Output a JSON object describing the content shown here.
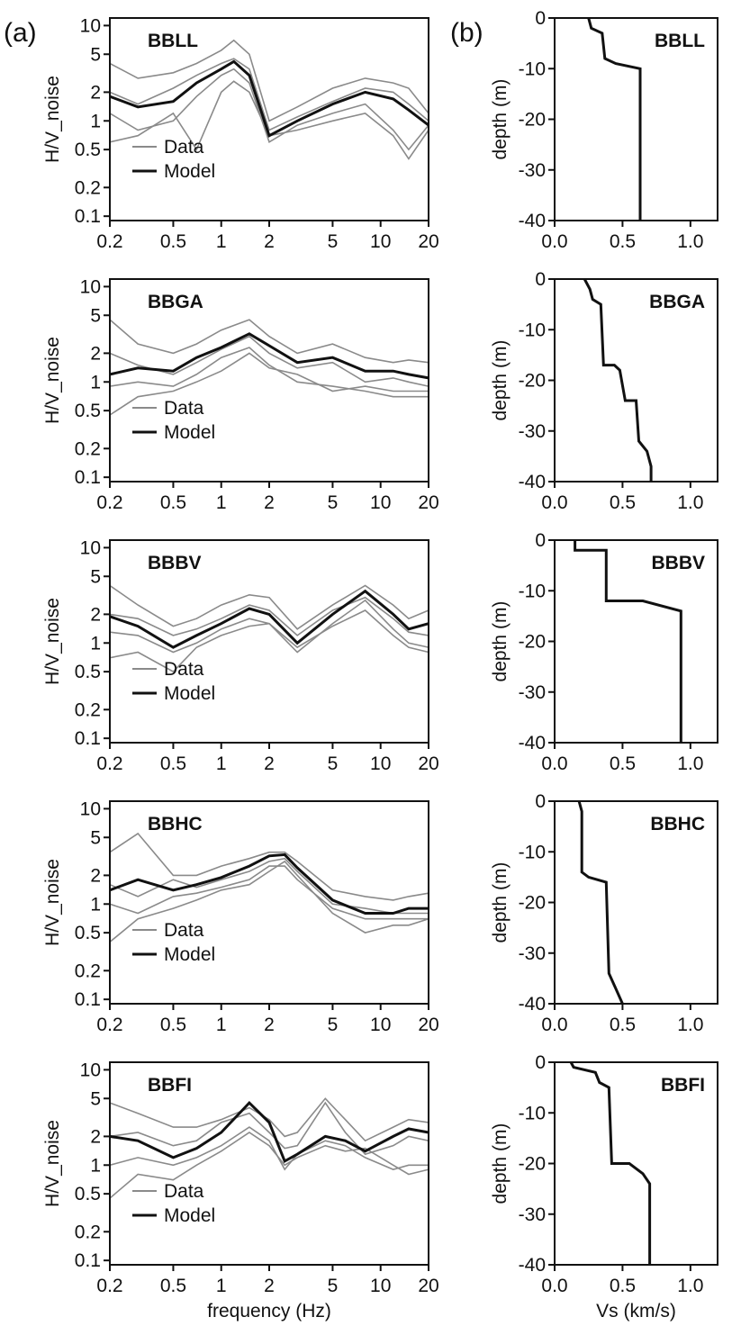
{
  "figure": {
    "panel_a_label": "(a)",
    "panel_b_label": "(b)",
    "legend_data_label": "Data",
    "legend_model_label": "Model",
    "colors": {
      "data": "#8a8a8a",
      "model": "#111111",
      "axis": "#111111"
    }
  },
  "chart_data": [
    {
      "type": "line",
      "panel": "a",
      "station": "BBLL",
      "xlabel": "",
      "ylabel": "H/V_noise",
      "xscale": "log",
      "yscale": "log",
      "xlim": [
        0.2,
        20
      ],
      "ylim": [
        0.09,
        12
      ],
      "xticks": [
        "0.2",
        "0.5",
        "1",
        "2",
        "5",
        "10",
        "20"
      ],
      "yticks": [
        "0.1",
        "0.2",
        "0.5",
        "1",
        "2",
        "5",
        "10"
      ],
      "legend": {
        "entries": [
          "Data",
          "Model"
        ],
        "position": "bottom-left"
      },
      "x": [
        0.2,
        0.3,
        0.5,
        0.7,
        1.0,
        1.2,
        1.5,
        2.0,
        3.0,
        5.0,
        8.0,
        12.0,
        15.0,
        20.0
      ],
      "model": [
        1.8,
        1.4,
        1.6,
        2.5,
        3.5,
        4.2,
        3.0,
        0.7,
        1.0,
        1.5,
        2.0,
        1.7,
        1.3,
        0.9
      ],
      "data": [
        [
          4.0,
          2.8,
          3.2,
          4.0,
          5.5,
          7.0,
          5.0,
          1.0,
          1.4,
          2.2,
          2.8,
          2.5,
          2.2,
          1.2
        ],
        [
          2.0,
          1.5,
          2.2,
          3.0,
          4.0,
          4.5,
          3.5,
          0.8,
          1.1,
          1.6,
          2.2,
          2.0,
          1.5,
          1.0
        ],
        [
          1.2,
          0.8,
          1.0,
          1.8,
          3.0,
          3.5,
          2.5,
          0.6,
          0.9,
          1.2,
          1.5,
          0.8,
          0.5,
          0.9
        ],
        [
          0.6,
          0.7,
          1.2,
          0.5,
          2.0,
          2.6,
          2.0,
          0.7,
          0.8,
          1.0,
          1.2,
          0.7,
          0.4,
          0.8
        ]
      ]
    },
    {
      "type": "line",
      "panel": "b",
      "station": "BBLL",
      "xlabel": "",
      "ylabel": "depth (m)",
      "xlim": [
        0.0,
        1.2
      ],
      "ylim": [
        -40,
        0
      ],
      "xticks": [
        "0.0",
        "0.5",
        "1.0"
      ],
      "yticks": [
        "0",
        "-10",
        "-20",
        "-30",
        "-40"
      ],
      "profile": [
        [
          0.25,
          0
        ],
        [
          0.27,
          -2
        ],
        [
          0.35,
          -3
        ],
        [
          0.37,
          -8
        ],
        [
          0.45,
          -9
        ],
        [
          0.63,
          -10
        ],
        [
          0.63,
          -40
        ]
      ]
    },
    {
      "type": "line",
      "panel": "a",
      "station": "BBGA",
      "xlabel": "",
      "ylabel": "H/V_noise",
      "xscale": "log",
      "yscale": "log",
      "xlim": [
        0.2,
        20
      ],
      "ylim": [
        0.09,
        12
      ],
      "xticks": [
        "0.2",
        "0.5",
        "1",
        "2",
        "5",
        "10",
        "20"
      ],
      "yticks": [
        "0.1",
        "0.2",
        "0.5",
        "1",
        "2",
        "5",
        "10"
      ],
      "legend": {
        "entries": [
          "Data",
          "Model"
        ],
        "position": "bottom-left"
      },
      "x": [
        0.2,
        0.3,
        0.5,
        0.7,
        1.0,
        1.5,
        2.0,
        3.0,
        5.0,
        8.0,
        12.0,
        15.0,
        20.0
      ],
      "model": [
        1.2,
        1.4,
        1.3,
        1.8,
        2.3,
        3.2,
        2.4,
        1.6,
        1.8,
        1.3,
        1.3,
        1.2,
        1.1
      ],
      "data": [
        [
          4.5,
          2.5,
          2.0,
          2.5,
          3.5,
          4.5,
          3.0,
          2.0,
          2.5,
          1.8,
          1.6,
          1.7,
          1.6
        ],
        [
          2.0,
          1.5,
          1.2,
          1.6,
          2.2,
          3.0,
          2.0,
          1.4,
          1.6,
          1.0,
          1.1,
          1.0,
          0.9
        ],
        [
          0.9,
          1.0,
          0.9,
          1.2,
          1.8,
          2.3,
          1.5,
          1.0,
          0.9,
          0.8,
          0.7,
          0.7,
          0.7
        ],
        [
          0.45,
          0.7,
          0.8,
          1.0,
          1.3,
          2.0,
          1.4,
          1.2,
          0.8,
          0.9,
          0.8,
          0.8,
          0.8
        ]
      ]
    },
    {
      "type": "line",
      "panel": "b",
      "station": "BBGA",
      "xlabel": "",
      "ylabel": "depth (m)",
      "xlim": [
        0.0,
        1.2
      ],
      "ylim": [
        -40,
        0
      ],
      "xticks": [
        "0.0",
        "0.5",
        "1.0"
      ],
      "yticks": [
        "0",
        "-10",
        "-20",
        "-30",
        "-40"
      ],
      "profile": [
        [
          0.22,
          0
        ],
        [
          0.26,
          -2
        ],
        [
          0.28,
          -4
        ],
        [
          0.34,
          -5
        ],
        [
          0.36,
          -17
        ],
        [
          0.44,
          -17
        ],
        [
          0.48,
          -18
        ],
        [
          0.52,
          -24
        ],
        [
          0.6,
          -24
        ],
        [
          0.62,
          -32
        ],
        [
          0.68,
          -34
        ],
        [
          0.71,
          -37
        ],
        [
          0.71,
          -40
        ]
      ]
    },
    {
      "type": "line",
      "panel": "a",
      "station": "BBBV",
      "xlabel": "",
      "ylabel": "H/V_noise",
      "xscale": "log",
      "yscale": "log",
      "xlim": [
        0.2,
        20
      ],
      "ylim": [
        0.09,
        12
      ],
      "xticks": [
        "0.2",
        "0.5",
        "1",
        "2",
        "5",
        "10",
        "20"
      ],
      "yticks": [
        "0.1",
        "0.2",
        "0.5",
        "1",
        "2",
        "5",
        "10"
      ],
      "legend": {
        "entries": [
          "Data",
          "Model"
        ],
        "position": "bottom-left"
      },
      "x": [
        0.2,
        0.3,
        0.5,
        0.7,
        1.0,
        1.5,
        2.0,
        3.0,
        5.0,
        8.0,
        12.0,
        15.0,
        20.0
      ],
      "model": [
        1.9,
        1.5,
        0.9,
        1.2,
        1.6,
        2.3,
        2.0,
        1.0,
        2.0,
        3.5,
        2.0,
        1.4,
        1.6
      ],
      "data": [
        [
          4.0,
          2.5,
          1.5,
          1.8,
          2.5,
          3.2,
          3.0,
          1.4,
          2.5,
          4.0,
          2.5,
          1.8,
          2.2
        ],
        [
          2.0,
          1.8,
          1.2,
          1.4,
          1.8,
          2.5,
          2.2,
          1.2,
          2.2,
          3.0,
          1.8,
          1.3,
          1.2
        ],
        [
          1.3,
          1.2,
          0.8,
          1.0,
          1.4,
          1.8,
          1.6,
          0.8,
          1.6,
          2.8,
          1.4,
          1.0,
          0.9
        ],
        [
          0.7,
          0.8,
          0.5,
          0.9,
          1.2,
          1.5,
          1.6,
          0.9,
          1.5,
          2.2,
          1.2,
          0.9,
          0.8
        ]
      ]
    },
    {
      "type": "line",
      "panel": "b",
      "station": "BBBV",
      "xlabel": "",
      "ylabel": "depth (m)",
      "xlim": [
        0.0,
        1.2
      ],
      "ylim": [
        -40,
        0
      ],
      "xticks": [
        "0.0",
        "0.5",
        "1.0"
      ],
      "yticks": [
        "0",
        "-10",
        "-20",
        "-30",
        "-40"
      ],
      "profile": [
        [
          0.15,
          0
        ],
        [
          0.15,
          -2
        ],
        [
          0.38,
          -2
        ],
        [
          0.38,
          -12
        ],
        [
          0.65,
          -12
        ],
        [
          0.93,
          -14
        ],
        [
          0.93,
          -40
        ]
      ]
    },
    {
      "type": "line",
      "panel": "a",
      "station": "BBHC",
      "xlabel": "",
      "ylabel": "H/V_noise",
      "xscale": "log",
      "yscale": "log",
      "xlim": [
        0.2,
        20
      ],
      "ylim": [
        0.09,
        12
      ],
      "xticks": [
        "0.2",
        "0.5",
        "1",
        "2",
        "5",
        "10",
        "20"
      ],
      "yticks": [
        "0.1",
        "0.2",
        "0.5",
        "1",
        "2",
        "5",
        "10"
      ],
      "legend": {
        "entries": [
          "Data",
          "Model"
        ],
        "position": "bottom-left"
      },
      "x": [
        0.2,
        0.3,
        0.5,
        0.7,
        1.0,
        1.5,
        2.0,
        2.5,
        3.0,
        5.0,
        8.0,
        12.0,
        15.0,
        20.0
      ],
      "model": [
        1.4,
        1.8,
        1.4,
        1.6,
        1.9,
        2.5,
        3.2,
        3.3,
        2.4,
        1.1,
        0.8,
        0.8,
        0.9,
        0.9
      ],
      "data": [
        [
          3.5,
          5.5,
          2.0,
          2.0,
          2.5,
          3.0,
          3.5,
          3.5,
          2.8,
          1.4,
          1.2,
          1.1,
          1.2,
          1.3
        ],
        [
          1.6,
          1.2,
          1.8,
          1.5,
          1.8,
          2.2,
          2.8,
          3.0,
          2.2,
          1.0,
          0.9,
          0.8,
          0.8,
          0.8
        ],
        [
          1.0,
          0.8,
          1.2,
          1.3,
          1.5,
          1.8,
          2.5,
          2.5,
          1.8,
          0.9,
          0.7,
          0.7,
          0.7,
          0.7
        ],
        [
          0.4,
          0.7,
          0.9,
          1.1,
          1.4,
          1.6,
          2.2,
          2.8,
          2.0,
          0.8,
          0.5,
          0.6,
          0.6,
          0.7
        ]
      ]
    },
    {
      "type": "line",
      "panel": "b",
      "station": "BBHC",
      "xlabel": "",
      "ylabel": "depth (m)",
      "xlim": [
        0.0,
        1.2
      ],
      "ylim": [
        -40,
        0
      ],
      "xticks": [
        "0.0",
        "0.5",
        "1.0"
      ],
      "yticks": [
        "0",
        "-10",
        "-20",
        "-30",
        "-40"
      ],
      "profile": [
        [
          0.18,
          0
        ],
        [
          0.2,
          -2
        ],
        [
          0.2,
          -14
        ],
        [
          0.25,
          -15
        ],
        [
          0.38,
          -16
        ],
        [
          0.4,
          -34
        ],
        [
          0.45,
          -37
        ],
        [
          0.5,
          -40
        ]
      ]
    },
    {
      "type": "line",
      "panel": "a",
      "station": "BBFI",
      "xlabel": "frequency (Hz)",
      "ylabel": "H/V_noise",
      "xscale": "log",
      "yscale": "log",
      "xlim": [
        0.2,
        20
      ],
      "ylim": [
        0.09,
        12
      ],
      "xticks": [
        "0.2",
        "0.5",
        "1",
        "2",
        "5",
        "10",
        "20"
      ],
      "yticks": [
        "0.1",
        "0.2",
        "0.5",
        "1",
        "2",
        "5",
        "10"
      ],
      "legend": {
        "entries": [
          "Data",
          "Model"
        ],
        "position": "bottom-left"
      },
      "x": [
        0.2,
        0.3,
        0.5,
        0.7,
        1.0,
        1.5,
        2.0,
        2.5,
        3.0,
        4.5,
        6.0,
        8.0,
        12.0,
        15.0,
        20.0
      ],
      "model": [
        2.0,
        1.8,
        1.2,
        1.5,
        2.2,
        4.5,
        2.8,
        1.1,
        1.3,
        2.0,
        1.8,
        1.4,
        2.0,
        2.4,
        2.2
      ],
      "data": [
        [
          4.5,
          3.5,
          2.5,
          2.5,
          3.0,
          4.0,
          3.0,
          2.0,
          2.2,
          5.0,
          3.0,
          1.8,
          2.5,
          3.0,
          2.8
        ],
        [
          2.0,
          2.2,
          1.6,
          1.8,
          2.8,
          3.5,
          2.2,
          1.5,
          1.6,
          4.5,
          2.2,
          1.3,
          1.6,
          2.0,
          1.8
        ],
        [
          1.0,
          1.2,
          1.0,
          1.2,
          1.6,
          2.5,
          1.8,
          0.9,
          1.3,
          1.8,
          1.6,
          1.2,
          0.9,
          1.0,
          1.0
        ],
        [
          0.45,
          0.8,
          0.7,
          1.0,
          1.4,
          2.2,
          1.6,
          1.0,
          1.2,
          1.6,
          1.4,
          1.5,
          1.0,
          0.8,
          0.9
        ]
      ]
    },
    {
      "type": "line",
      "panel": "b",
      "station": "BBFI",
      "xlabel": "Vs (km/s)",
      "ylabel": "depth (m)",
      "xlim": [
        0.0,
        1.2
      ],
      "ylim": [
        -40,
        0
      ],
      "xticks": [
        "0.0",
        "0.5",
        "1.0"
      ],
      "yticks": [
        "0",
        "-10",
        "-20",
        "-30",
        "-40"
      ],
      "profile": [
        [
          0.12,
          0
        ],
        [
          0.14,
          -1
        ],
        [
          0.3,
          -2
        ],
        [
          0.33,
          -4
        ],
        [
          0.4,
          -5
        ],
        [
          0.42,
          -20
        ],
        [
          0.55,
          -20
        ],
        [
          0.65,
          -22
        ],
        [
          0.7,
          -24
        ],
        [
          0.7,
          -40
        ]
      ]
    }
  ]
}
